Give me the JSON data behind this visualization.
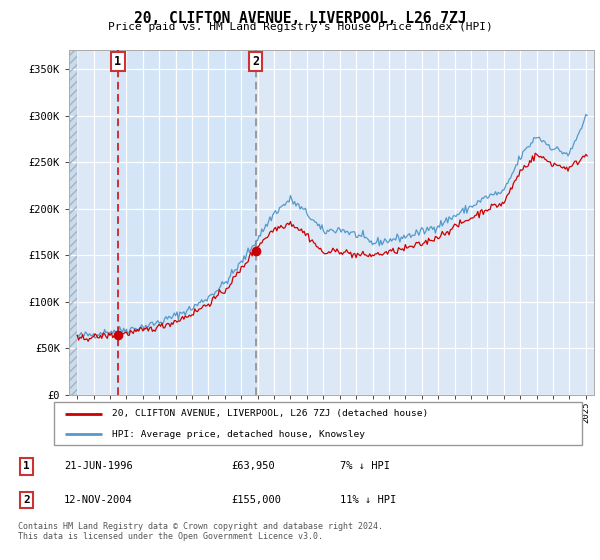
{
  "title": "20, CLIFTON AVENUE, LIVERPOOL, L26 7ZJ",
  "subtitle": "Price paid vs. HM Land Registry's House Price Index (HPI)",
  "legend_line1": "20, CLIFTON AVENUE, LIVERPOOL, L26 7ZJ (detached house)",
  "legend_line2": "HPI: Average price, detached house, Knowsley",
  "footnote": "Contains HM Land Registry data © Crown copyright and database right 2024.\nThis data is licensed under the Open Government Licence v3.0.",
  "sale1_date": "21-JUN-1996",
  "sale1_price": "£63,950",
  "sale1_hpi": "7% ↓ HPI",
  "sale2_date": "12-NOV-2004",
  "sale2_price": "£155,000",
  "sale2_hpi": "11% ↓ HPI",
  "sale1_year": 1996.47,
  "sale1_value": 63950,
  "sale2_year": 2004.87,
  "sale2_value": 155000,
  "ylabel_ticks": [
    "£0",
    "£50K",
    "£100K",
    "£150K",
    "£200K",
    "£250K",
    "£300K",
    "£350K"
  ],
  "ytick_values": [
    0,
    50000,
    100000,
    150000,
    200000,
    250000,
    300000,
    350000
  ],
  "ylim_max": 370000,
  "xlim_start": 1993.5,
  "xlim_end": 2025.5,
  "bg_color": "#dce8f5",
  "line_color_red": "#cc0000",
  "line_color_blue": "#5599cc",
  "shade_color": "#d0e4f7",
  "hpi_anchors_x": [
    1994,
    1995,
    1996,
    1997,
    1998,
    1999,
    2000,
    2001,
    2002,
    2003,
    2004,
    2005,
    2006,
    2007,
    2008,
    2009,
    2010,
    2011,
    2012,
    2013,
    2014,
    2015,
    2016,
    2017,
    2018,
    2019,
    2020,
    2021,
    2022,
    2023,
    2024,
    2025
  ],
  "hpi_anchors_y": [
    63000,
    65000,
    68000,
    70000,
    73000,
    78000,
    85000,
    93000,
    105000,
    120000,
    142000,
    168000,
    195000,
    210000,
    195000,
    175000,
    178000,
    172000,
    163000,
    166000,
    170000,
    175000,
    182000,
    192000,
    202000,
    213000,
    218000,
    255000,
    278000,
    265000,
    258000,
    298000
  ],
  "red_anchors_x": [
    1994,
    1995,
    1996,
    1997,
    1998,
    1999,
    2000,
    2001,
    2002,
    2003,
    2004,
    2005,
    2006,
    2007,
    2008,
    2009,
    2010,
    2011,
    2012,
    2013,
    2014,
    2015,
    2016,
    2017,
    2018,
    2019,
    2020,
    2021,
    2022,
    2023,
    2024,
    2025
  ],
  "red_anchors_y": [
    60000,
    62000,
    64000,
    66000,
    69000,
    73000,
    79000,
    87000,
    98000,
    112000,
    135000,
    160000,
    178000,
    185000,
    172000,
    152000,
    155000,
    150000,
    150000,
    153000,
    157000,
    162000,
    170000,
    180000,
    190000,
    200000,
    206000,
    240000,
    258000,
    248000,
    243000,
    258000
  ]
}
